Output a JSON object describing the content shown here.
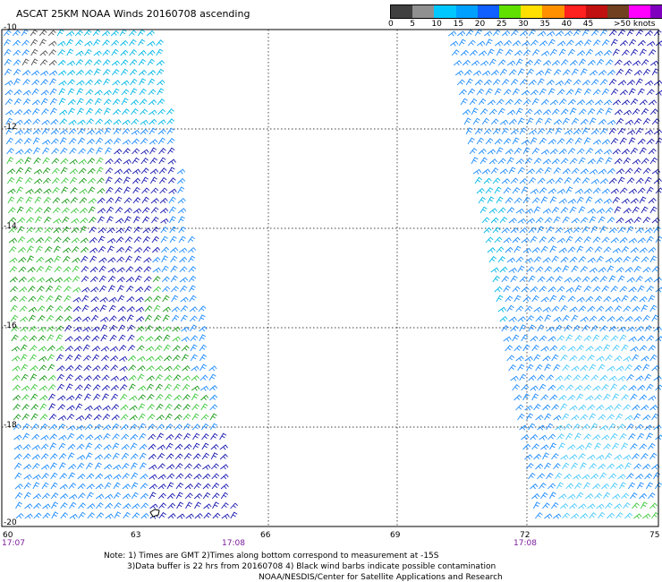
{
  "title": "ASCAT 25KM NOAA Winds 20160708 ascending",
  "scale": {
    "labels": [
      "0",
      "5",
      "10",
      "15",
      "20",
      "25",
      "30",
      "35",
      "40",
      "45",
      ">50 knots"
    ],
    "colors": [
      "#404040",
      "#909090",
      "#00c8ff",
      "#00a0ff",
      "#1060ff",
      "#60e000",
      "#ffe000",
      "#ff9000",
      "#ff2020",
      "#c01010",
      "#704020",
      "#ff00ff",
      "#8000c0"
    ]
  },
  "lat_labels": [
    "-10",
    "-12",
    "-14",
    "-16",
    "-18",
    "-20"
  ],
  "lon_labels": [
    "60",
    "63",
    "66",
    "69",
    "72",
    "75"
  ],
  "time_labels": [
    "17:07",
    "17:08",
    "17:08"
  ],
  "notes": {
    "line1": "Note: 1) Times are GMT 2)Times along bottom correspond to measurement at -15S",
    "line2": "3)Data buffer is 22 hrs from 20160708 4) Black wind barbs indicate possible contamination",
    "line3": "NOAA/NESDIS/Center for Satellite Applications and Research"
  }
}
